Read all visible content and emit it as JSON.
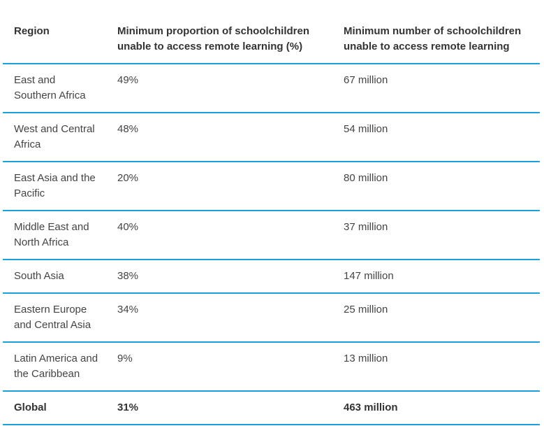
{
  "accent_color": "#1d9fd9",
  "table": {
    "headers": [
      "Region",
      "Minimum proportion of schoolchildren unable to access remote learning (%)",
      "Minimum number of schoolchildren unable to access remote learning"
    ],
    "rows": [
      [
        "East and Southern Africa",
        "49%",
        "67 million"
      ],
      [
        "West and Central Africa",
        "48%",
        "54 million"
      ],
      [
        "East Asia and the Pacific",
        "20%",
        "80 million"
      ],
      [
        "Middle East and North Africa",
        "40%",
        "37 million"
      ],
      [
        "South Asia",
        "38%",
        "147 million"
      ],
      [
        "Eastern Europe and Central Asia",
        "34%",
        "25 million"
      ],
      [
        "Latin America and the Caribbean",
        "9%",
        "13 million"
      ]
    ],
    "total": [
      "Global",
      "31%",
      "463 million"
    ]
  }
}
